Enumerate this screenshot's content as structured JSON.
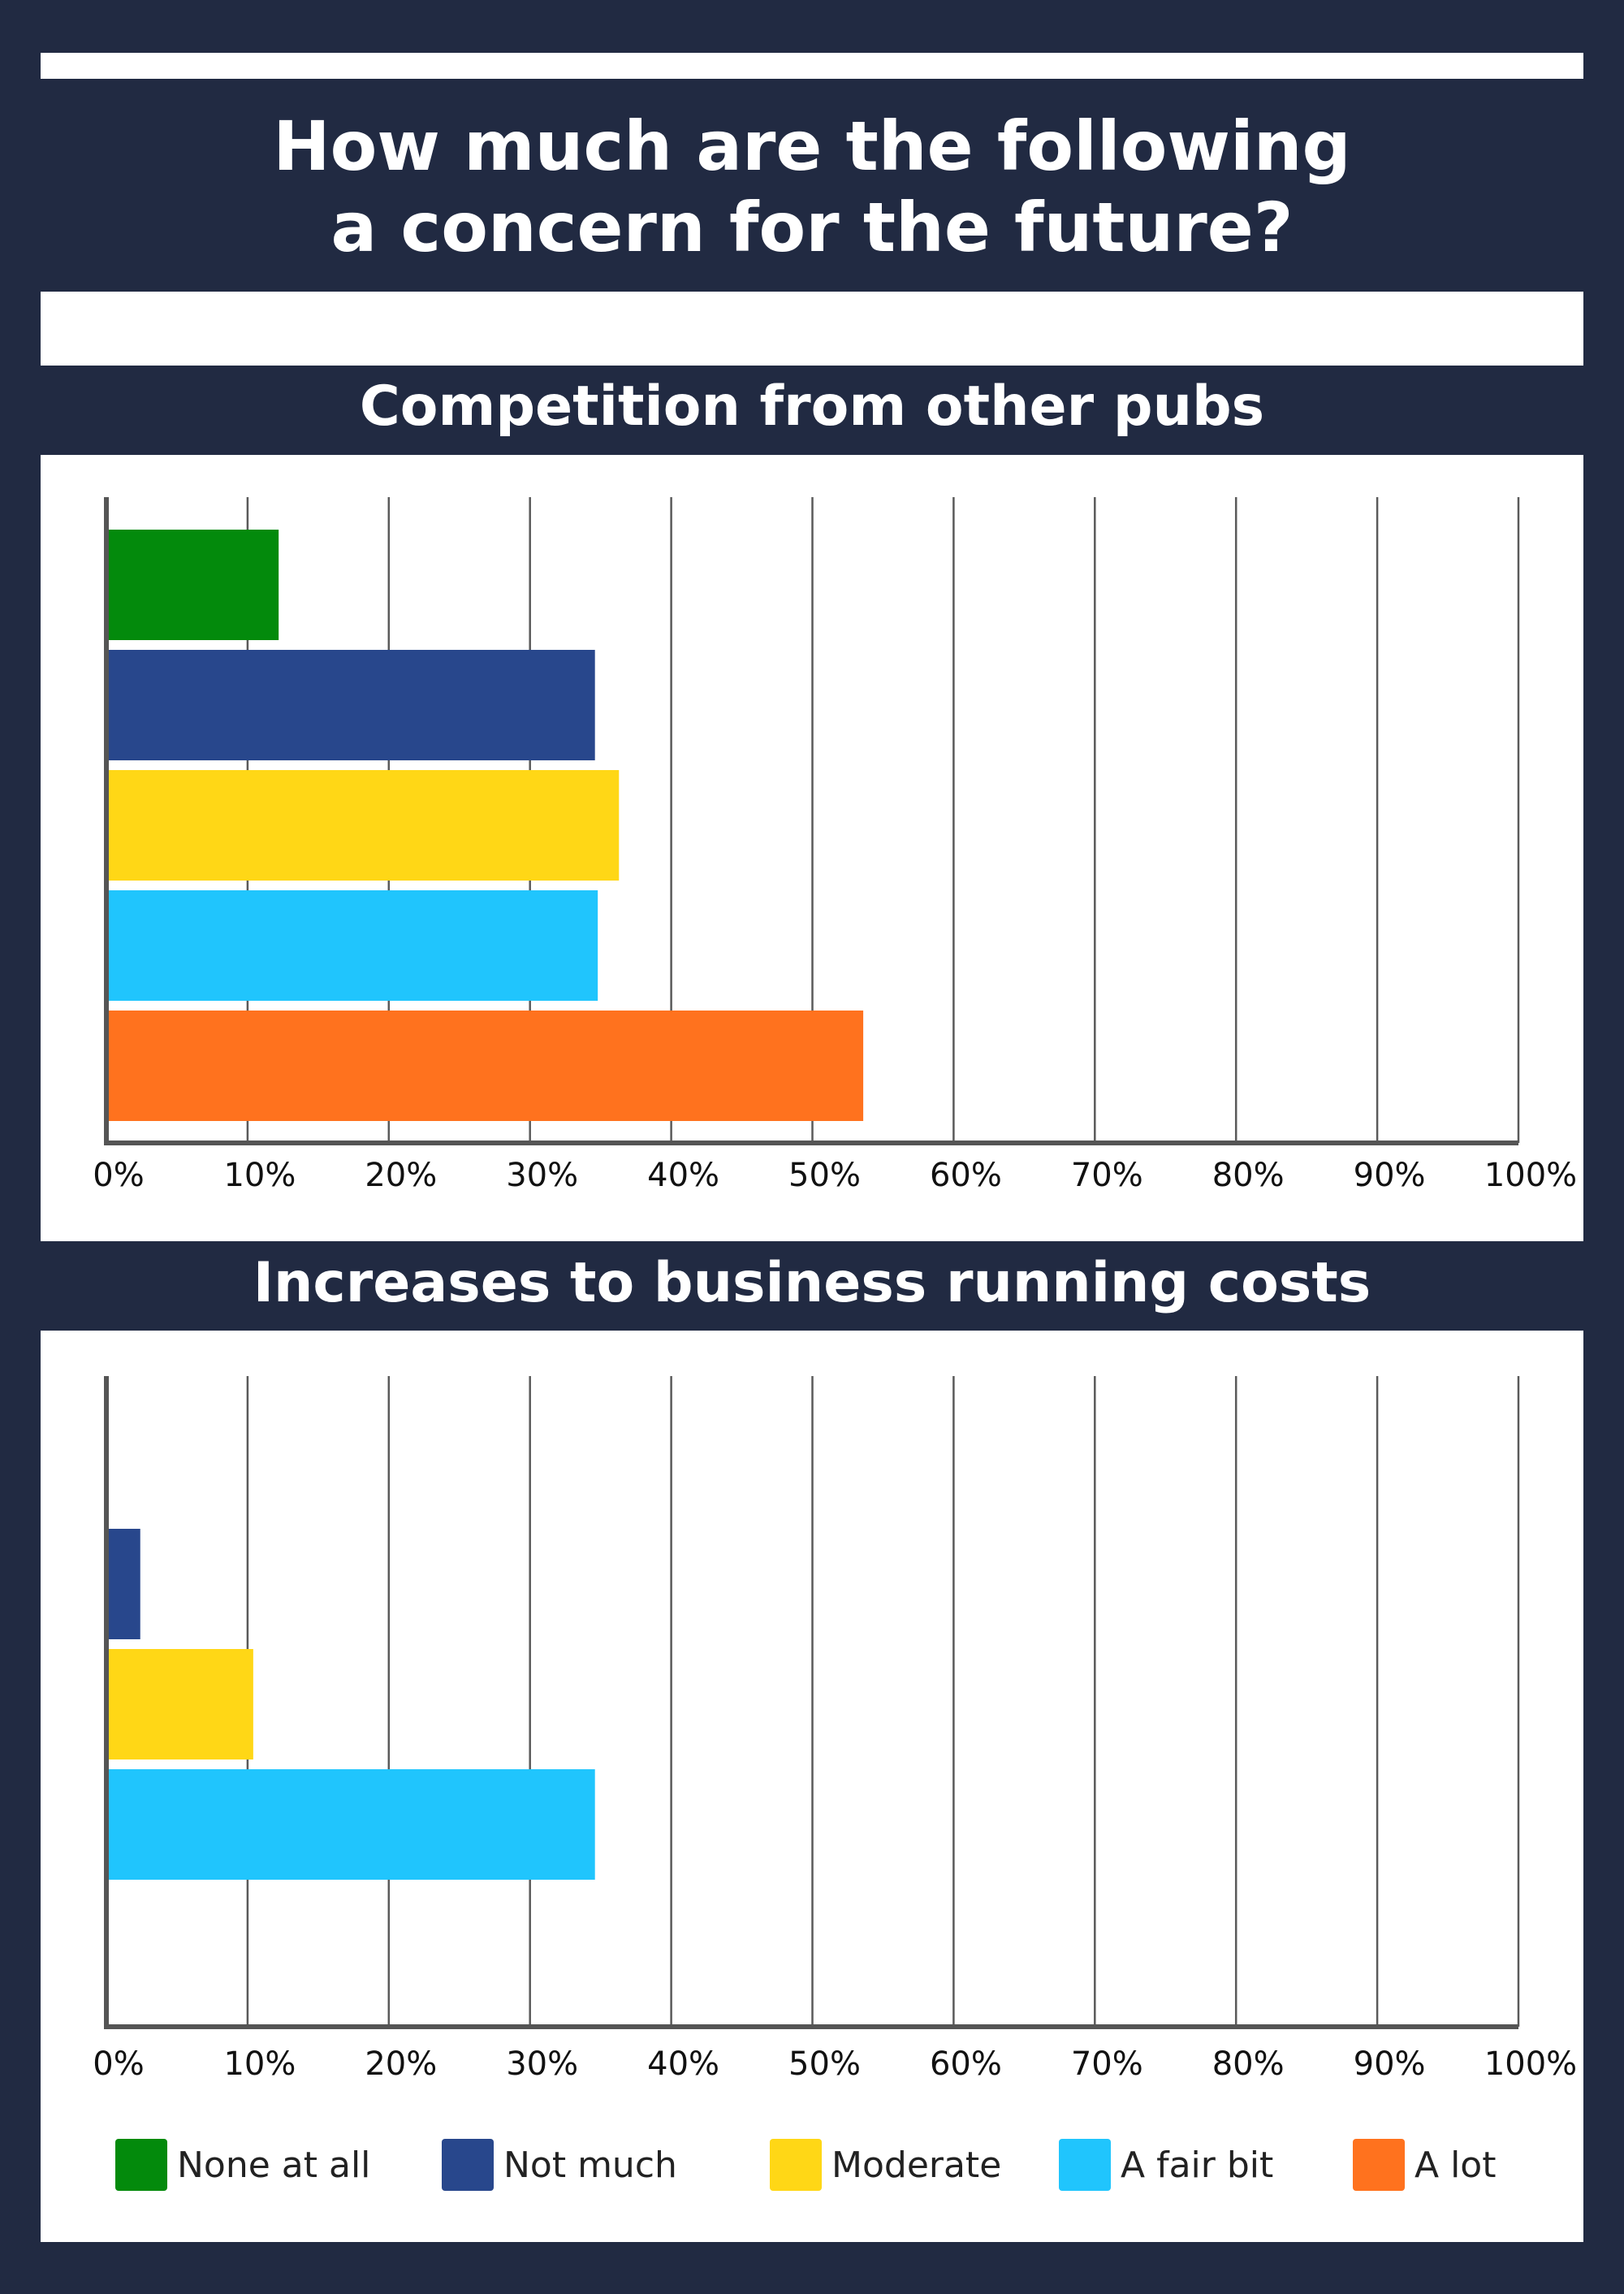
{
  "title_line1": "How much are the following",
  "title_line2": "a concern for the future?",
  "colors": {
    "background": "#212a42",
    "None at all": "#038a0c",
    "Not much": "#28478c",
    "Moderate": "#ffd716",
    "A fair bit": "#20c5fd",
    "A lot": "#ff721e"
  },
  "chart_data": [
    {
      "type": "bar",
      "orientation": "horizontal",
      "title": "Competition from other pubs",
      "categories": [
        "None at all",
        "Not much",
        "Moderate",
        "A fair bit",
        "A lot"
      ],
      "values": [
        12.2,
        34.6,
        36.3,
        34.8,
        53.6
      ],
      "xlim": [
        0,
        100
      ],
      "xticks": [
        "0%",
        "10%",
        "20%",
        "30%",
        "40%",
        "50%",
        "60%",
        "70%",
        "80%",
        "90%",
        "100%"
      ],
      "grid": true
    },
    {
      "type": "bar",
      "orientation": "horizontal",
      "title": "Increases to business running costs",
      "categories": [
        "None at all",
        "Not much",
        "Moderate",
        "A fair bit",
        "A lot"
      ],
      "values": [
        null,
        2.4,
        10.4,
        34.6,
        null
      ],
      "xlim": [
        0,
        100
      ],
      "xticks": [
        "0%",
        "10%",
        "20%",
        "30%",
        "40%",
        "50%",
        "60%",
        "70%",
        "80%",
        "90%",
        "100%"
      ],
      "grid": true
    }
  ],
  "legend": {
    "placement": "bottom",
    "items": [
      "None at all",
      "Not much",
      "Moderate",
      "A fair bit",
      "A lot"
    ]
  }
}
